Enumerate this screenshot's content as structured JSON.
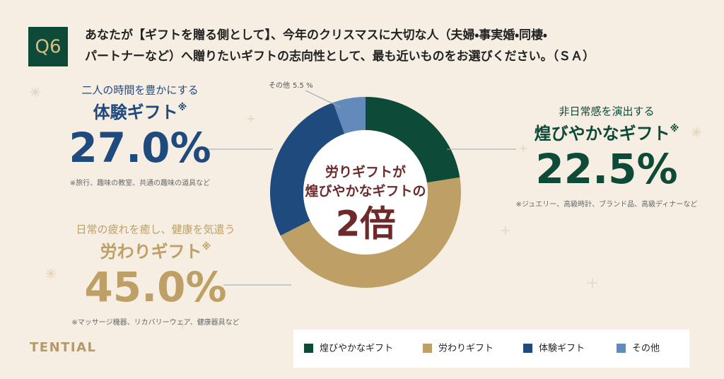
{
  "header": {
    "badge": "Q6",
    "question": [
      "あなたが【ギフトを贈る側として】、今年のクリスマスに大切な人（夫婦・事実婚・同棲・",
      "パートナーなど）へ贈りたいギフトの志向性として、最も近いものをお選びください。（ＳＡ）"
    ]
  },
  "chart_data": {
    "type": "pie",
    "donut": true,
    "categories": [
      "煌びやかなギフト",
      "労わりギフト",
      "体験ギフト",
      "その他"
    ],
    "values": [
      22.5,
      45.0,
      27.0,
      5.5
    ],
    "value_labels": [
      "22.5%",
      "45.0%",
      "27.0%",
      "5.5 %"
    ],
    "colors": [
      "#0e4a38",
      "#bea066",
      "#1f4a7d",
      "#628abb"
    ],
    "leads": [
      "非日常感を演出する",
      "日常の疲れを癒し、健康を気遣う",
      "二人の時間を豊かにする"
    ],
    "notes": [
      "※ジュエリー、高級時計、ブランド品、高級ディナーなど",
      "※マッサージ機器、リカバリーウェア、健康器具など",
      "※旅行、趣味の教室、共通の趣味の道具など"
    ],
    "note_mark": "※",
    "center_text": [
      "労りギフトが",
      "煌びやかなギフトの"
    ],
    "center_emphasis": "2倍"
  },
  "brand": "TENTIAL"
}
